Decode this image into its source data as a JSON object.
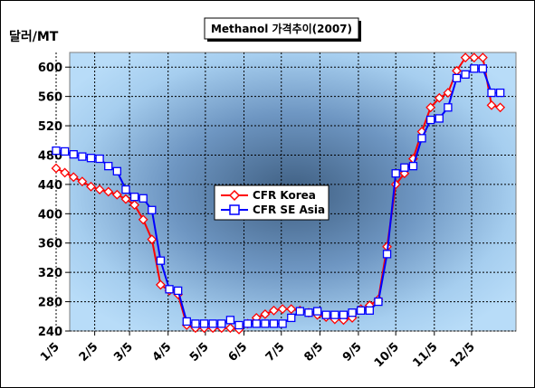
{
  "chart_data": {
    "type": "line",
    "title": "Methanol 가격추이(2007)",
    "ylabel": "달러/MT",
    "xlabel": "",
    "ylim": [
      240,
      620
    ],
    "yticks": [
      240,
      280,
      320,
      360,
      400,
      440,
      480,
      520,
      560,
      600
    ],
    "xlim": [
      0,
      50
    ],
    "xticks": [
      {
        "label": "1/5",
        "x": 0
      },
      {
        "label": "2/5",
        "x": 4.43
      },
      {
        "label": "3/5",
        "x": 8.43
      },
      {
        "label": "4/5",
        "x": 12.86
      },
      {
        "label": "5/5",
        "x": 17.14
      },
      {
        "label": "6/5",
        "x": 21.57
      },
      {
        "label": "7/5",
        "x": 25.86
      },
      {
        "label": "8/5",
        "x": 30.29
      },
      {
        "label": "9/5",
        "x": 34.71
      },
      {
        "label": "10/5",
        "x": 39
      },
      {
        "label": "11/5",
        "x": 43.43
      },
      {
        "label": "12/5",
        "x": 47.71
      }
    ],
    "grid": true,
    "legend_position": "center",
    "series": [
      {
        "name": "CFR Korea",
        "color": "#ff0000",
        "marker": "diamond",
        "points": [
          [
            0,
            462
          ],
          [
            1,
            456
          ],
          [
            2,
            450
          ],
          [
            3,
            444
          ],
          [
            4,
            437
          ],
          [
            5,
            433
          ],
          [
            6,
            430
          ],
          [
            7,
            426
          ],
          [
            8,
            420
          ],
          [
            9,
            412
          ],
          [
            10,
            392
          ],
          [
            11,
            365
          ],
          [
            12,
            303
          ],
          [
            13,
            295
          ],
          [
            14,
            290
          ],
          [
            15,
            248
          ],
          [
            16,
            244
          ],
          [
            17,
            244
          ],
          [
            18,
            244
          ],
          [
            19,
            244
          ],
          [
            20,
            244
          ],
          [
            21,
            242
          ],
          [
            22,
            250
          ],
          [
            23,
            258
          ],
          [
            24,
            263
          ],
          [
            25,
            268
          ],
          [
            26,
            270
          ],
          [
            27,
            270
          ],
          [
            28,
            268
          ],
          [
            29,
            265
          ],
          [
            30,
            262
          ],
          [
            31,
            259
          ],
          [
            32,
            256
          ],
          [
            33,
            255
          ],
          [
            34,
            258
          ],
          [
            35,
            270
          ],
          [
            36,
            275
          ],
          [
            37,
            283
          ],
          [
            38,
            355
          ],
          [
            39,
            440
          ],
          [
            40,
            455
          ],
          [
            41,
            475
          ],
          [
            42,
            512
          ],
          [
            43,
            545
          ],
          [
            44,
            558
          ],
          [
            45,
            565
          ],
          [
            46,
            595
          ],
          [
            47,
            613
          ],
          [
            48,
            613
          ],
          [
            49,
            613
          ],
          [
            50,
            548
          ],
          [
            51,
            545
          ]
        ]
      },
      {
        "name": "CFR SE Asia",
        "color": "#0000ff",
        "marker": "square",
        "points": [
          [
            0,
            486
          ],
          [
            1,
            485
          ],
          [
            2,
            481
          ],
          [
            3,
            478
          ],
          [
            4,
            476
          ],
          [
            5,
            475
          ],
          [
            6,
            465
          ],
          [
            7,
            458
          ],
          [
            8,
            433
          ],
          [
            9,
            423
          ],
          [
            10,
            421
          ],
          [
            11,
            405
          ],
          [
            12,
            336
          ],
          [
            13,
            297
          ],
          [
            14,
            295
          ],
          [
            15,
            253
          ],
          [
            16,
            250
          ],
          [
            17,
            250
          ],
          [
            18,
            250
          ],
          [
            19,
            250
          ],
          [
            20,
            255
          ],
          [
            21,
            248
          ],
          [
            22,
            250
          ],
          [
            23,
            250
          ],
          [
            24,
            250
          ],
          [
            25,
            250
          ],
          [
            26,
            250
          ],
          [
            27,
            258
          ],
          [
            28,
            267
          ],
          [
            29,
            265
          ],
          [
            30,
            267
          ],
          [
            31,
            262
          ],
          [
            32,
            262
          ],
          [
            33,
            262
          ],
          [
            34,
            265
          ],
          [
            35,
            268
          ],
          [
            36,
            268
          ],
          [
            37,
            280
          ],
          [
            38,
            345
          ],
          [
            39,
            455
          ],
          [
            40,
            463
          ],
          [
            41,
            465
          ],
          [
            42,
            503
          ],
          [
            43,
            528
          ],
          [
            44,
            530
          ],
          [
            45,
            545
          ],
          [
            46,
            585
          ],
          [
            47,
            590
          ],
          [
            48,
            598
          ],
          [
            49,
            598
          ],
          [
            50,
            565
          ],
          [
            51,
            565
          ]
        ]
      }
    ]
  }
}
